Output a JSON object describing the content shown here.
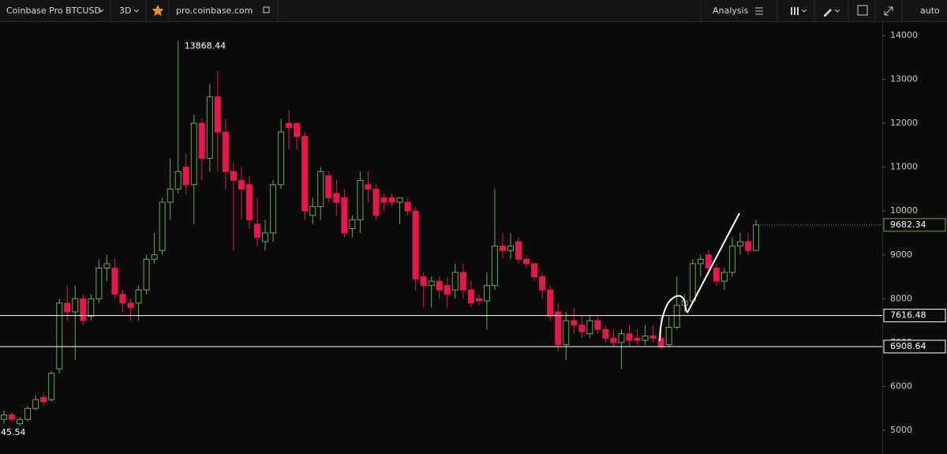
{
  "toolbar": {
    "symbol": "Coinbase Pro BTCUSD",
    "interval": "3D",
    "site": "pro.coinbase.com",
    "analysis": "Analysis",
    "scale_mode": "auto"
  },
  "chart_data": {
    "type": "candlestick",
    "up_color": "#6aa84f",
    "down_color": "#e8174b",
    "ylim": [
      4460,
      14306
    ],
    "yticks": [
      5000,
      6000,
      7000,
      8000,
      9000,
      10000,
      11000,
      12000,
      13000,
      14000
    ],
    "hlines": [
      7616.48,
      6908.64
    ],
    "corner_label": "45.54",
    "series": [
      {
        "open": [
          5250,
          5350,
          5150,
          5250,
          5500,
          5750,
          5700,
          6400,
          7900,
          7700,
          8000,
          7600,
          8000,
          8700,
          8700,
          8100,
          7900,
          7900,
          8200,
          8900,
          9100,
          10200,
          10500,
          11000,
          10600,
          12000,
          11200,
          12600,
          11800,
          10900,
          10700,
          10600,
          9700,
          9300,
          9500,
          10600,
          12000,
          12000,
          11700,
          9900,
          10100,
          10800,
          10400,
          10300,
          9600,
          9800,
          10600,
          10500,
          10300,
          10300,
          10200,
          10200,
          10000,
          8500,
          8300,
          8400,
          8300,
          8200,
          8600,
          8200,
          8000,
          7950,
          8300,
          9200,
          9100,
          9300,
          8900,
          8800,
          8500,
          8200,
          7700,
          6950,
          7500,
          7400,
          7200,
          7500,
          7300,
          7100,
          7000,
          7200,
          7100,
          7050,
          7150,
          7100,
          6950,
          7350,
          7850,
          7950,
          8800,
          9000,
          8700,
          8400,
          8600,
          9200,
          9300,
          9100
        ],
        "high": [
          5450,
          5400,
          5300,
          5550,
          5800,
          5850,
          6350,
          8000,
          8300,
          8300,
          8100,
          8100,
          8900,
          9000,
          8900,
          8200,
          8000,
          8300,
          9000,
          9500,
          10300,
          11200,
          13868.44,
          11300,
          12200,
          12100,
          12900,
          13200,
          12100,
          11100,
          11000,
          10800,
          10300,
          9800,
          10700,
          12100,
          12300,
          12000,
          11800,
          10300,
          11000,
          10900,
          10700,
          10500,
          9900,
          10900,
          10900,
          10600,
          10400,
          10400,
          10300,
          10300,
          10100,
          8600,
          8500,
          8500,
          8500,
          8800,
          8800,
          8400,
          8100,
          8600,
          10500,
          9500,
          9500,
          9400,
          9000,
          8800,
          8600,
          8300,
          7900,
          7700,
          7800,
          7600,
          7600,
          7600,
          7400,
          7300,
          7300,
          7400,
          7300,
          7400,
          7400,
          7600,
          7600,
          8500,
          8100,
          8900,
          9000,
          9100,
          8800,
          8700,
          9400,
          9500,
          9500,
          9800
        ],
        "low": [
          5150,
          5200,
          5100,
          5200,
          5450,
          5550,
          5650,
          6300,
          7500,
          6600,
          7400,
          7500,
          7900,
          8400,
          8000,
          7700,
          7500,
          7500,
          8100,
          8800,
          9000,
          9800,
          10400,
          10400,
          9700,
          10700,
          10900,
          10900,
          10500,
          9100,
          9800,
          9600,
          9200,
          9100,
          9300,
          10500,
          11400,
          11400,
          9800,
          9700,
          9800,
          10200,
          9900,
          9400,
          9400,
          9500,
          10200,
          9800,
          10000,
          10100,
          9700,
          9900,
          8200,
          7800,
          7800,
          8000,
          7800,
          8000,
          8000,
          7800,
          7850,
          7300,
          8200,
          8900,
          8900,
          8800,
          8700,
          8400,
          8000,
          7500,
          6800,
          6600,
          7200,
          7100,
          7100,
          7200,
          7000,
          6900,
          6400,
          6900,
          6950,
          6950,
          7000,
          6850,
          6900,
          7300,
          7700,
          7900,
          8500,
          8600,
          8300,
          8200,
          8500,
          9000,
          9000,
          9100
        ],
        "close": [
          5350,
          5250,
          5250,
          5500,
          5700,
          5650,
          6300,
          7900,
          7700,
          8000,
          7500,
          8000,
          8700,
          8800,
          8100,
          7900,
          7800,
          8200,
          8900,
          9000,
          10200,
          10500,
          10900,
          10600,
          12000,
          11200,
          12600,
          11800,
          10900,
          10700,
          10500,
          9800,
          9400,
          9500,
          10600,
          11800,
          11900,
          11700,
          10000,
          10100,
          10900,
          10300,
          10200,
          9500,
          9800,
          10700,
          10500,
          9900,
          10200,
          10200,
          10300,
          10000,
          8450,
          8300,
          8400,
          8200,
          8100,
          8600,
          8200,
          7900,
          7950,
          8300,
          9200,
          9100,
          9200,
          8900,
          8800,
          8500,
          8200,
          7600,
          6950,
          7500,
          7400,
          7250,
          7500,
          7300,
          7100,
          7000,
          7200,
          7050,
          7050,
          7150,
          7100,
          6900,
          7350,
          7850,
          7950,
          8800,
          8900,
          8700,
          8400,
          8600,
          9200,
          9300,
          9100,
          9682.34
        ]
      }
    ]
  }
}
